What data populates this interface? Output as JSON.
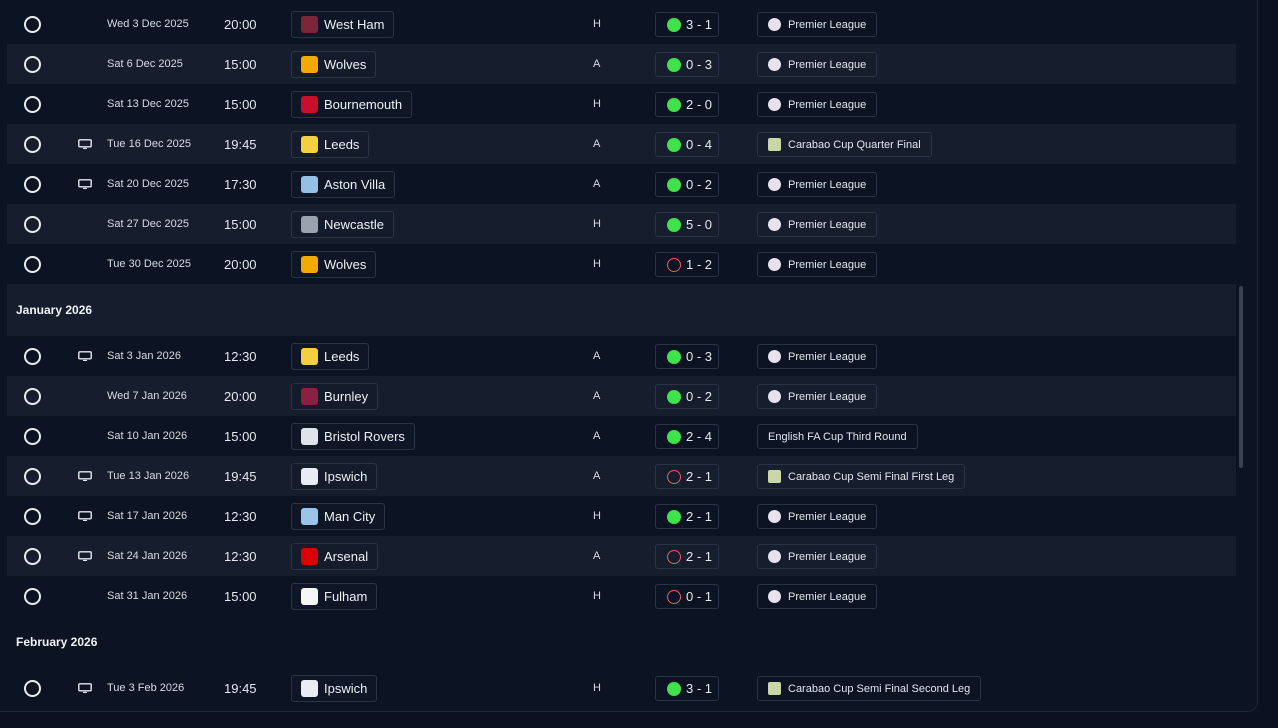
{
  "fixtures_block1": [
    {
      "tv": false,
      "date": "Wed 3 Dec 2025",
      "time": "20:00",
      "team": "West Ham",
      "crest": "west-ham-crest-icon",
      "crest_color": "#7a2638",
      "venue": "H",
      "outcome": "win",
      "score": "3 - 1",
      "comp": "Premier League",
      "comp_type": "league"
    },
    {
      "tv": false,
      "date": "Sat 6 Dec 2025",
      "time": "15:00",
      "team": "Wolves",
      "crest": "wolves-crest-icon",
      "crest_color": "#f2a900",
      "venue": "A",
      "outcome": "win",
      "score": "0 - 3",
      "comp": "Premier League",
      "comp_type": "league"
    },
    {
      "tv": false,
      "date": "Sat 13 Dec 2025",
      "time": "15:00",
      "team": "Bournemouth",
      "crest": "bournemouth-crest-icon",
      "crest_color": "#c8102e",
      "venue": "H",
      "outcome": "win",
      "score": "2 - 0",
      "comp": "Premier League",
      "comp_type": "league"
    },
    {
      "tv": true,
      "date": "Tue 16 Dec 2025",
      "time": "19:45",
      "team": "Leeds",
      "crest": "leeds-crest-icon",
      "crest_color": "#f4d03f",
      "venue": "A",
      "outcome": "win",
      "score": "0 - 4",
      "comp": "Carabao Cup Quarter Final",
      "comp_type": "cup"
    },
    {
      "tv": true,
      "date": "Sat 20 Dec 2025",
      "time": "17:30",
      "team": "Aston Villa",
      "crest": "aston-villa-crest-icon",
      "crest_color": "#95bfe5",
      "venue": "A",
      "outcome": "win",
      "score": "0 - 2",
      "comp": "Premier League",
      "comp_type": "league"
    },
    {
      "tv": false,
      "date": "Sat 27 Dec 2025",
      "time": "15:00",
      "team": "Newcastle",
      "crest": "newcastle-crest-icon",
      "crest_color": "#9aa3ad",
      "venue": "H",
      "outcome": "win",
      "score": "5 - 0",
      "comp": "Premier League",
      "comp_type": "league"
    },
    {
      "tv": false,
      "date": "Tue 30 Dec 2025",
      "time": "20:00",
      "team": "Wolves",
      "crest": "wolves-crest-icon",
      "crest_color": "#f2a900",
      "venue": "H",
      "outcome": "loss",
      "score": "1 - 2",
      "comp": "Premier League",
      "comp_type": "league"
    }
  ],
  "month_jan": "January 2026",
  "fixtures_block2": [
    {
      "tv": true,
      "date": "Sat 3 Jan 2026",
      "time": "12:30",
      "team": "Leeds",
      "crest": "leeds-crest-icon",
      "crest_color": "#f4d03f",
      "venue": "A",
      "outcome": "win",
      "score": "0 - 3",
      "comp": "Premier League",
      "comp_type": "league"
    },
    {
      "tv": false,
      "date": "Wed 7 Jan 2026",
      "time": "20:00",
      "team": "Burnley",
      "crest": "burnley-crest-icon",
      "crest_color": "#8b2142",
      "venue": "A",
      "outcome": "win",
      "score": "0 - 2",
      "comp": "Premier League",
      "comp_type": "league"
    },
    {
      "tv": false,
      "date": "Sat 10 Jan 2026",
      "time": "15:00",
      "team": "Bristol Rovers",
      "crest": "bristol-rovers-crest-icon",
      "crest_color": "#dfe3ea",
      "venue": "A",
      "outcome": "win",
      "score": "2 - 4",
      "comp": "English FA Cup Third Round",
      "comp_type": "none"
    },
    {
      "tv": true,
      "date": "Tue 13 Jan 2026",
      "time": "19:45",
      "team": "Ipswich",
      "crest": "ipswich-crest-icon",
      "crest_color": "#e8ecf5",
      "venue": "A",
      "outcome": "loss",
      "score": "2 - 1",
      "comp": "Carabao Cup Semi Final First Leg",
      "comp_type": "cup"
    },
    {
      "tv": true,
      "date": "Sat 17 Jan 2026",
      "time": "12:30",
      "team": "Man City",
      "crest": "man-city-crest-icon",
      "crest_color": "#98c5e9",
      "venue": "H",
      "outcome": "win",
      "score": "2 - 1",
      "comp": "Premier League",
      "comp_type": "league"
    },
    {
      "tv": true,
      "date": "Sat 24 Jan 2026",
      "time": "12:30",
      "team": "Arsenal",
      "crest": "arsenal-crest-icon",
      "crest_color": "#db0007",
      "venue": "A",
      "outcome": "loss",
      "score": "2 - 1",
      "comp": "Premier League",
      "comp_type": "league"
    },
    {
      "tv": false,
      "date": "Sat 31 Jan 2026",
      "time": "15:00",
      "team": "Fulham",
      "crest": "fulham-crest-icon",
      "crest_color": "#f5f5f5",
      "venue": "H",
      "outcome": "loss",
      "score": "0 - 1",
      "comp": "Premier League",
      "comp_type": "league"
    }
  ],
  "month_feb": "February 2026",
  "fixtures_block3": [
    {
      "tv": true,
      "date": "Tue 3 Feb 2026",
      "time": "19:45",
      "team": "Ipswich",
      "crest": "ipswich-crest-icon",
      "crest_color": "#e8ecf5",
      "venue": "H",
      "outcome": "win",
      "score": "3 - 1",
      "comp": "Carabao Cup Semi Final Second Leg",
      "comp_type": "cup"
    }
  ]
}
